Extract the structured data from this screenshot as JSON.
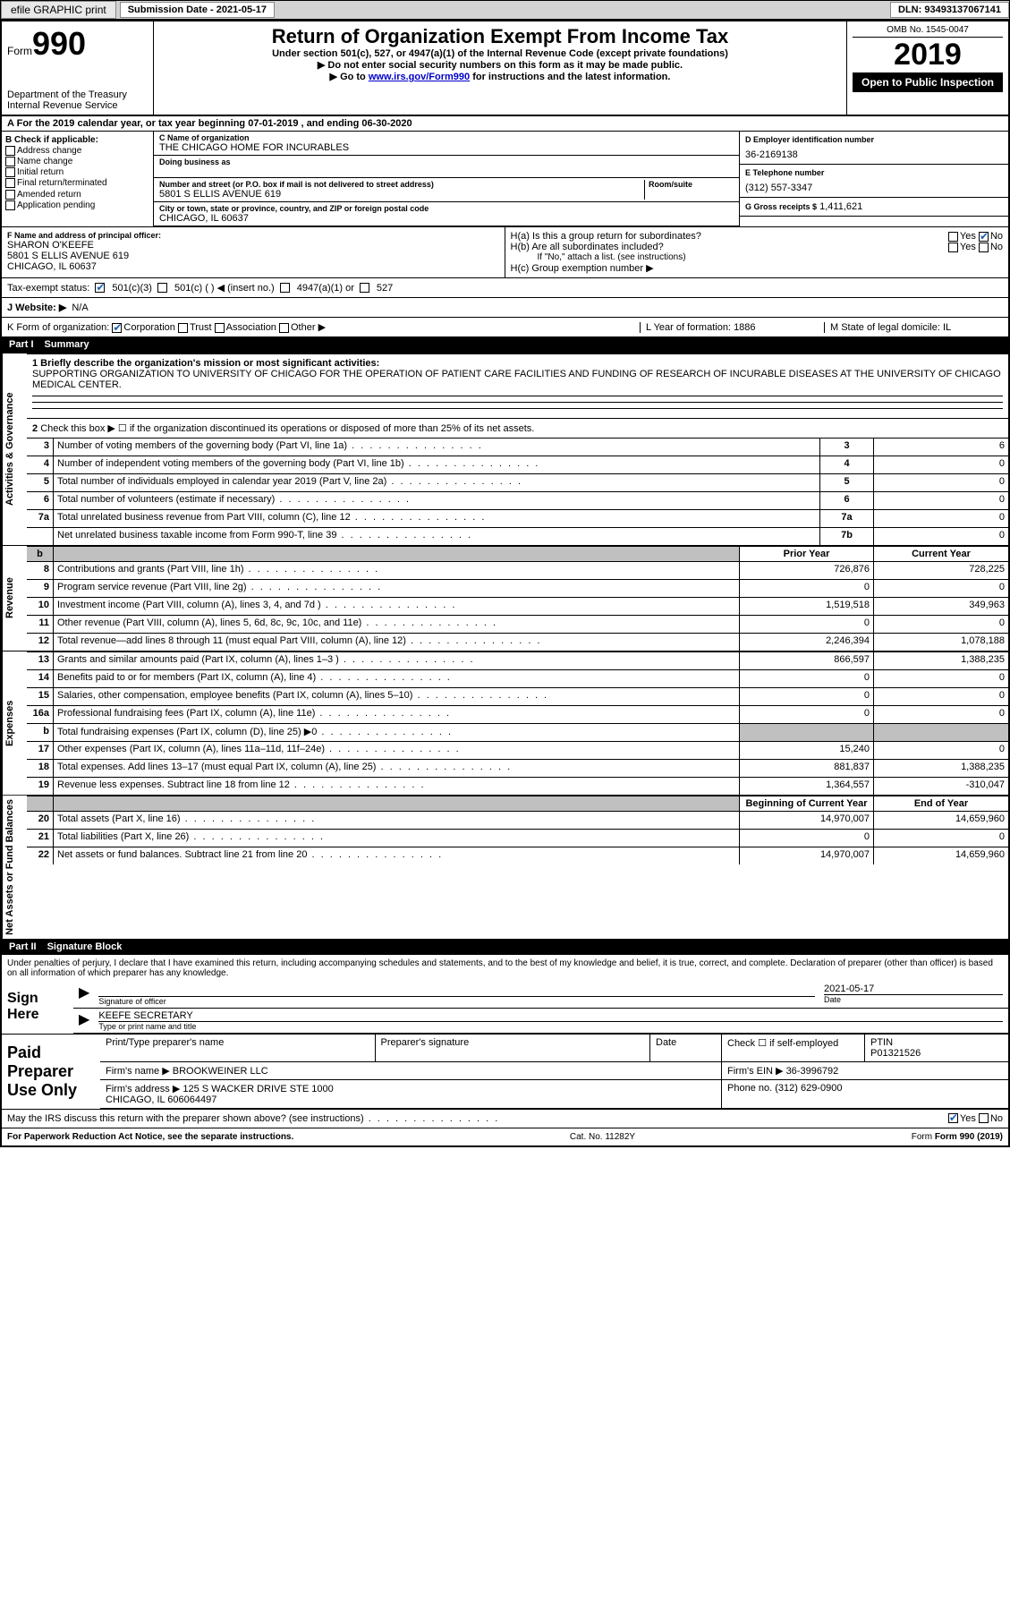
{
  "topbar": {
    "efile": "efile GRAPHIC print",
    "sub_label": "Submission Date - 2021-05-17",
    "dln": "DLN: 93493137067141"
  },
  "header": {
    "form_word": "Form",
    "form_num": "990",
    "dept": "Department of the Treasury\nInternal Revenue Service",
    "title": "Return of Organization Exempt From Income Tax",
    "subtitle": "Under section 501(c), 527, or 4947(a)(1) of the Internal Revenue Code (except private foundations)",
    "note1": "Do not enter social security numbers on this form as it may be made public.",
    "note2_pre": "Go to ",
    "note2_link": "www.irs.gov/Form990",
    "note2_post": " for instructions and the latest information.",
    "omb": "OMB No. 1545-0047",
    "year": "2019",
    "public": "Open to Public Inspection"
  },
  "period": "For the 2019 calendar year, or tax year beginning 07-01-2019   , and ending 06-30-2020",
  "checkB": {
    "label": "B Check if applicable:",
    "items": [
      "Address change",
      "Name change",
      "Initial return",
      "Final return/terminated",
      "Amended return",
      "Application pending"
    ]
  },
  "blockC": {
    "name_label": "C Name of organization",
    "name": "THE CHICAGO HOME FOR INCURABLES",
    "dba_label": "Doing business as",
    "addr_label": "Number and street (or P.O. box if mail is not delivered to street address)",
    "room": "Room/suite",
    "addr": "5801 S ELLIS AVENUE 619",
    "city_label": "City or town, state or province, country, and ZIP or foreign postal code",
    "city": "CHICAGO, IL  60637"
  },
  "blockD": {
    "label": "D Employer identification number",
    "val": "36-2169138"
  },
  "blockE": {
    "label": "E Telephone number",
    "val": "(312) 557-3347"
  },
  "blockG": {
    "label": "G Gross receipts $",
    "val": "1,411,621"
  },
  "blockF": {
    "label": "F  Name and address of principal officer:",
    "name": "SHARON O'KEEFE",
    "addr": "5801 S ELLIS AVENUE 619\nCHICAGO, IL  60637"
  },
  "blockH": {
    "a": "H(a)  Is this a group return for subordinates?",
    "a_yes": "Yes",
    "a_no": "No",
    "b": "H(b)  Are all subordinates included?",
    "b_yes": "Yes",
    "b_no": "No",
    "b_note": "If \"No,\" attach a list. (see instructions)",
    "c": "H(c)  Group exemption number ▶"
  },
  "taxstatus": {
    "label": "Tax-exempt status:",
    "c3": "501(c)(3)",
    "c": "501(c) (   ) ◀ (insert no.)",
    "a1": "4947(a)(1) or",
    "s527": "527"
  },
  "website": {
    "label": "J   Website: ▶",
    "val": "N/A"
  },
  "blockK": {
    "label": "K Form of organization:",
    "corp": "Corporation",
    "trust": "Trust",
    "assoc": "Association",
    "other": "Other ▶"
  },
  "blockL": {
    "label": "L Year of formation:",
    "val": "1886"
  },
  "blockM": {
    "label": "M State of legal domicile:",
    "val": "IL"
  },
  "part1": {
    "hdr_num": "Part I",
    "hdr_title": "Summary",
    "q1": "1  Briefly describe the organization's mission or most significant activities:",
    "q1val": "SUPPORTING ORGANIZATION TO UNIVERSITY OF CHICAGO FOR THE OPERATION OF PATIENT CARE FACILITIES AND FUNDING OF RESEARCH OF INCURABLE DISEASES AT THE UNIVERSITY OF CHICAGO MEDICAL CENTER.",
    "q2": "Check this box ▶ ☐  if the organization discontinued its operations or disposed of more than 25% of its net assets.",
    "lines_gov": [
      {
        "n": "3",
        "t": "Number of voting members of the governing body (Part VI, line 1a)",
        "box": "3",
        "v": "6"
      },
      {
        "n": "4",
        "t": "Number of independent voting members of the governing body (Part VI, line 1b)",
        "box": "4",
        "v": "0"
      },
      {
        "n": "5",
        "t": "Total number of individuals employed in calendar year 2019 (Part V, line 2a)",
        "box": "5",
        "v": "0"
      },
      {
        "n": "6",
        "t": "Total number of volunteers (estimate if necessary)",
        "box": "6",
        "v": "0"
      },
      {
        "n": "7a",
        "t": "Total unrelated business revenue from Part VIII, column (C), line 12",
        "box": "7a",
        "v": "0"
      },
      {
        "n": "",
        "t": "Net unrelated business taxable income from Form 990-T, line 39",
        "box": "7b",
        "v": "0"
      }
    ],
    "col_prior": "Prior Year",
    "col_curr": "Current Year",
    "revenue": [
      {
        "n": "8",
        "t": "Contributions and grants (Part VIII, line 1h)",
        "p": "726,876",
        "c": "728,225"
      },
      {
        "n": "9",
        "t": "Program service revenue (Part VIII, line 2g)",
        "p": "0",
        "c": "0"
      },
      {
        "n": "10",
        "t": "Investment income (Part VIII, column (A), lines 3, 4, and 7d )",
        "p": "1,519,518",
        "c": "349,963"
      },
      {
        "n": "11",
        "t": "Other revenue (Part VIII, column (A), lines 5, 6d, 8c, 9c, 10c, and 11e)",
        "p": "0",
        "c": "0"
      },
      {
        "n": "12",
        "t": "Total revenue—add lines 8 through 11 (must equal Part VIII, column (A), line 12)",
        "p": "2,246,394",
        "c": "1,078,188"
      }
    ],
    "expenses": [
      {
        "n": "13",
        "t": "Grants and similar amounts paid (Part IX, column (A), lines 1–3 )",
        "p": "866,597",
        "c": "1,388,235"
      },
      {
        "n": "14",
        "t": "Benefits paid to or for members (Part IX, column (A), line 4)",
        "p": "0",
        "c": "0"
      },
      {
        "n": "15",
        "t": "Salaries, other compensation, employee benefits (Part IX, column (A), lines 5–10)",
        "p": "0",
        "c": "0"
      },
      {
        "n": "16a",
        "t": "Professional fundraising fees (Part IX, column (A), line 11e)",
        "p": "0",
        "c": "0"
      },
      {
        "n": "b",
        "t": "Total fundraising expenses (Part IX, column (D), line 25) ▶0",
        "p": "",
        "c": "",
        "gray": true
      },
      {
        "n": "17",
        "t": "Other expenses (Part IX, column (A), lines 11a–11d, 11f–24e)",
        "p": "15,240",
        "c": "0"
      },
      {
        "n": "18",
        "t": "Total expenses. Add lines 13–17 (must equal Part IX, column (A), line 25)",
        "p": "881,837",
        "c": "1,388,235"
      },
      {
        "n": "19",
        "t": "Revenue less expenses. Subtract line 18 from line 12",
        "p": "1,364,557",
        "c": "-310,047"
      }
    ],
    "col_begin": "Beginning of Current Year",
    "col_end": "End of Year",
    "netassets": [
      {
        "n": "20",
        "t": "Total assets (Part X, line 16)",
        "p": "14,970,007",
        "c": "14,659,960"
      },
      {
        "n": "21",
        "t": "Total liabilities (Part X, line 26)",
        "p": "0",
        "c": "0"
      },
      {
        "n": "22",
        "t": "Net assets or fund balances. Subtract line 21 from line 20",
        "p": "14,970,007",
        "c": "14,659,960"
      }
    ]
  },
  "part2": {
    "hdr_num": "Part II",
    "hdr_title": "Signature Block",
    "decl": "Under penalties of perjury, I declare that I have examined this return, including accompanying schedules and statements, and to the best of my knowledge and belief, it is true, correct, and complete. Declaration of preparer (other than officer) is based on all information of which preparer has any knowledge.",
    "sign_here": "Sign Here",
    "sig_label": "Signature of officer",
    "date_label": "Date",
    "date_val": "2021-05-17",
    "name_val": "KEEFE SECRETARY",
    "name_label": "Type or print name and title",
    "paid": "Paid Preparer Use Only",
    "prep_name_label": "Print/Type preparer's name",
    "prep_sig_label": "Preparer's signature",
    "prep_date": "Date",
    "self_emp": "Check ☐  if self-employed",
    "ptin_label": "PTIN",
    "ptin": "P01321526",
    "firm_label": "Firm's name   ▶",
    "firm": "BROOKWEINER LLC",
    "ein_label": "Firm's EIN ▶",
    "ein": "36-3996792",
    "firm_addr_label": "Firm's address ▶",
    "firm_addr": "125 S WACKER DRIVE STE 1000\nCHICAGO, IL  606064497",
    "phone_label": "Phone no.",
    "phone": "(312) 629-0900",
    "discuss": "May the IRS discuss this return with the preparer shown above? (see instructions)",
    "yes": "Yes",
    "no": "No"
  },
  "footer": {
    "paperwork": "For Paperwork Reduction Act Notice, see the separate instructions.",
    "cat": "Cat. No. 11282Y",
    "form": "Form 990 (2019)"
  },
  "tabs": {
    "gov": "Activities & Governance",
    "rev": "Revenue",
    "exp": "Expenses",
    "net": "Net Assets or Fund Balances"
  }
}
